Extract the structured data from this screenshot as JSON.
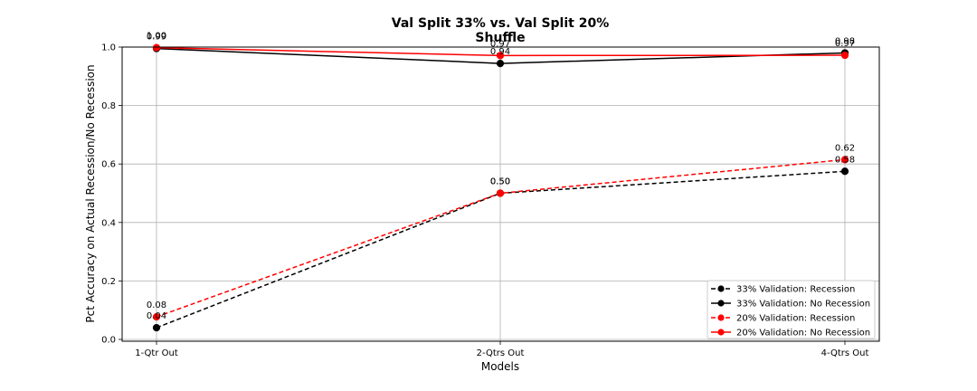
{
  "chart_data": {
    "type": "line",
    "title_lines": [
      "Val Split 33% vs. Val Split 20%",
      "Shuffle"
    ],
    "xlabel": "Models",
    "ylabel": "Pct Accuracy on Actual Recession/No Recession",
    "categories": [
      "1-Qtr Out",
      "2-Qtrs Out",
      "4-Qtrs Out"
    ],
    "ylim": [
      0.0,
      1.0
    ],
    "yticks": [
      "0.0",
      "0.2",
      "0.4",
      "0.6",
      "0.8",
      "1.0"
    ],
    "grid": true,
    "legend_position": "lower-right",
    "series": [
      {
        "name": "33% Validation: Recession",
        "values": [
          0.04,
          0.5,
          0.575
        ],
        "labels": [
          "0.04",
          "0.50",
          "0.58"
        ],
        "color": "#000000",
        "dashed": true
      },
      {
        "name": "33% Validation: No Recession",
        "values": [
          0.995,
          0.944,
          0.98
        ],
        "labels": [
          "0.99",
          "0.94",
          "0.98"
        ],
        "color": "#000000",
        "dashed": false
      },
      {
        "name": "20% Validation: Recession",
        "values": [
          0.077,
          0.5,
          0.615
        ],
        "labels": [
          "0.08",
          "0.50",
          "0.62"
        ],
        "color": "#ff0000",
        "dashed": true
      },
      {
        "name": "20% Validation: No Recession",
        "values": [
          0.998,
          0.971,
          0.972
        ],
        "labels": [
          "1.00",
          "0.97",
          "0.97"
        ],
        "color": "#ff0000",
        "dashed": false
      }
    ]
  }
}
